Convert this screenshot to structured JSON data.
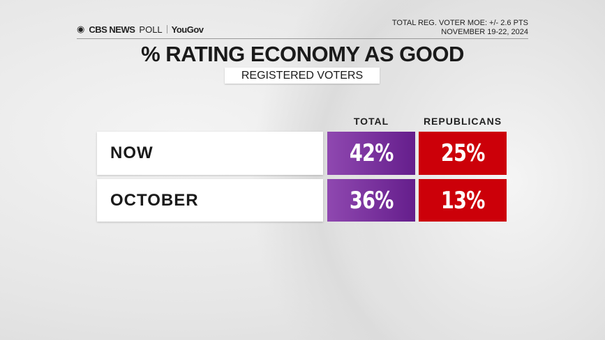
{
  "header": {
    "logo_cbs": "CBS NEWS",
    "logo_poll": "POLL",
    "logo_partner": "YouGov",
    "moe": "TOTAL REG. VOTER MOE: +/- 2.6 PTS",
    "dates": "NOVEMBER 19-22, 2024"
  },
  "title": "% RATING ECONOMY AS GOOD",
  "subtitle": "REGISTERED VOTERS",
  "colors": {
    "total": "#7a30a0",
    "republicans": "#cc0009"
  },
  "chart_data": {
    "type": "table",
    "title": "% RATING ECONOMY AS GOOD",
    "subtitle": "REGISTERED VOTERS",
    "columns": [
      "TOTAL",
      "REPUBLICANS"
    ],
    "rows": [
      {
        "label": "NOW",
        "values": [
          "42%",
          "25%"
        ]
      },
      {
        "label": "OCTOBER",
        "values": [
          "36%",
          "13%"
        ]
      }
    ]
  }
}
